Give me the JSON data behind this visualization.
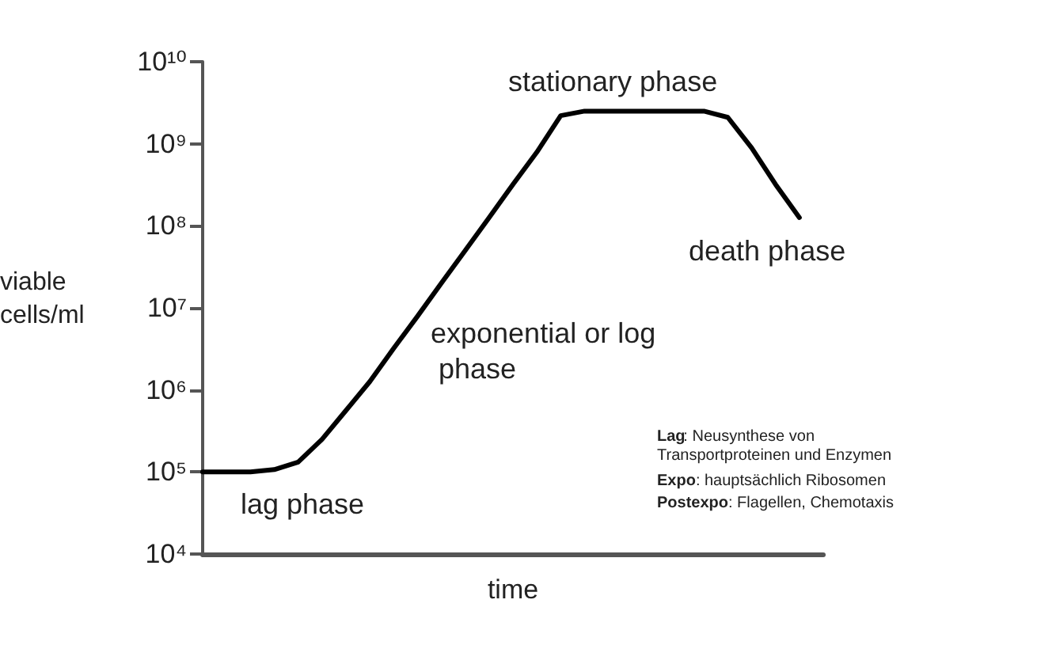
{
  "chart_data": {
    "type": "line",
    "xlabel": "time",
    "ylabel": "viable cells/ml",
    "categories": [
      null,
      null,
      null,
      null,
      null,
      null,
      null,
      null,
      null,
      null,
      null,
      null,
      null,
      null,
      null,
      null,
      null,
      null,
      null,
      null,
      null,
      null,
      null,
      null,
      null,
      null,
      null
    ],
    "series": [
      {
        "color": "#000000",
        "values": [
          100000,
          100000,
          100000,
          107000,
          132000,
          250000,
          560000,
          1260000,
          3200000,
          7900000,
          20000000,
          50000000,
          126000000,
          320000000,
          790000000,
          2200000000,
          2500000000,
          2500000000,
          2500000000,
          2500000000,
          2500000000,
          2500000000,
          2100000000,
          890000000,
          320000000,
          126000000,
          null
        ]
      }
    ],
    "log": "y",
    "ylim": [
      10000,
      10000000000
    ],
    "yticks": [
      {
        "value": 10000,
        "label": "10⁴"
      },
      {
        "value": 100000,
        "label": "10⁵"
      },
      {
        "value": 1000000,
        "label": "10⁶"
      },
      {
        "value": 10000000,
        "label": "10⁷"
      },
      {
        "value": 100000000,
        "label": "10⁸"
      },
      {
        "value": 1000000000,
        "label": "10⁹"
      },
      {
        "value": 10000000000,
        "label": "10¹⁰"
      }
    ],
    "tick_labels": "y",
    "grid": false,
    "marker": "none",
    "line_style": "solid",
    "annotations": [
      "lag phase",
      "exponential or log phase",
      "stationary phase",
      "death phase",
      "Lag: Neusynthese von Transportproteinen und Enzymen",
      "Expo: hauptsächlich Ribosomen",
      "Postexpo: Flagellen, Chemotaxis"
    ]
  }
}
